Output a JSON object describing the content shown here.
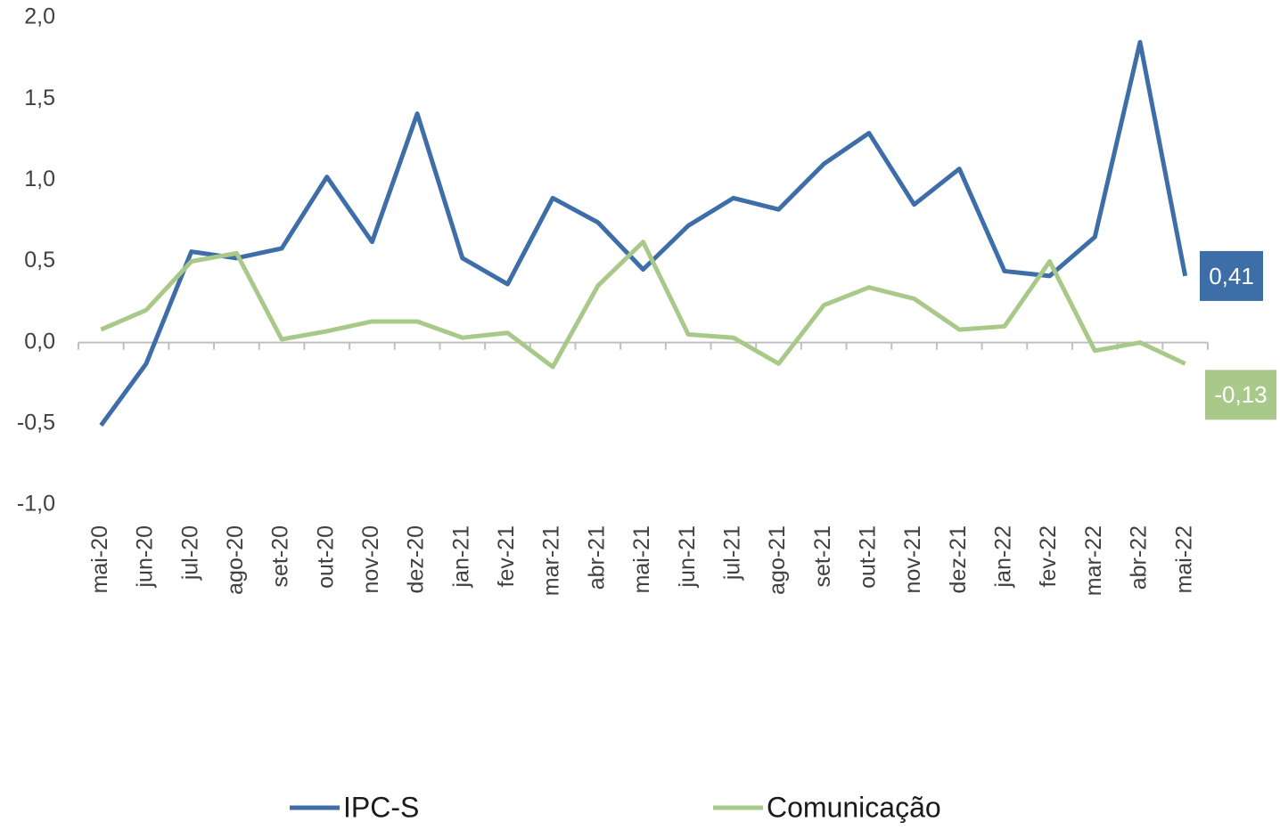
{
  "chart_data": {
    "type": "line",
    "categories": [
      "mai-20",
      "jun-20",
      "jul-20",
      "ago-20",
      "set-20",
      "out-20",
      "nov-20",
      "dez-20",
      "jan-21",
      "fev-21",
      "mar-21",
      "abr-21",
      "mai-21",
      "jun-21",
      "jul-21",
      "ago-21",
      "set-21",
      "out-21",
      "nov-21",
      "dez-21",
      "jan-22",
      "fev-22",
      "mar-22",
      "abr-22",
      "mai-22"
    ],
    "series": [
      {
        "name": "IPC-S",
        "color": "#3e6ea8",
        "values": [
          -0.51,
          -0.13,
          0.56,
          0.52,
          0.58,
          1.02,
          0.62,
          1.41,
          0.52,
          0.36,
          0.89,
          0.74,
          0.45,
          0.72,
          0.89,
          0.82,
          1.1,
          1.29,
          0.85,
          1.07,
          0.44,
          0.41,
          0.65,
          1.85,
          0.41
        ],
        "value_labels": [
          null,
          null,
          null,
          null,
          null,
          null,
          null,
          null,
          null,
          null,
          null,
          null,
          null,
          null,
          null,
          null,
          null,
          null,
          null,
          null,
          null,
          null,
          null,
          null,
          "0,41"
        ]
      },
      {
        "name": "Comunicação",
        "color": "#a9c98a",
        "values": [
          0.08,
          0.2,
          0.5,
          0.55,
          0.02,
          0.07,
          0.13,
          0.13,
          0.03,
          0.06,
          -0.15,
          0.35,
          0.62,
          0.05,
          0.03,
          -0.13,
          0.23,
          0.34,
          0.27,
          0.08,
          0.1,
          0.5,
          -0.05,
          0.0,
          -0.13
        ],
        "value_labels": [
          null,
          null,
          null,
          null,
          null,
          null,
          null,
          null,
          null,
          null,
          null,
          null,
          null,
          null,
          null,
          null,
          null,
          null,
          null,
          null,
          null,
          null,
          null,
          null,
          "-0,13"
        ]
      }
    ],
    "ylim": [
      -1,
      2
    ],
    "yticks": [
      {
        "value": -1,
        "label": "-1,0"
      },
      {
        "value": -0.5,
        "label": "-0,5"
      },
      {
        "value": 0,
        "label": "0,0"
      },
      {
        "value": 0.5,
        "label": "0,5"
      },
      {
        "value": 1,
        "label": "1,0"
      },
      {
        "value": 1.5,
        "label": "1,5"
      },
      {
        "value": 2,
        "label": "2,0"
      }
    ],
    "grid": false,
    "legend": "bottom"
  }
}
